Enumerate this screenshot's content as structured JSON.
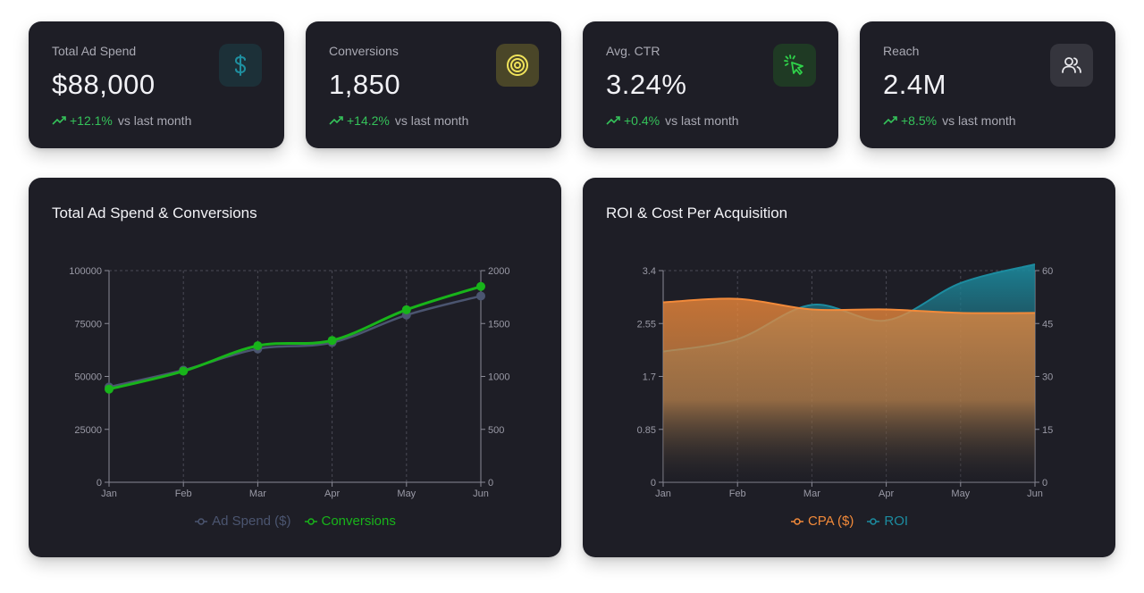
{
  "kpis": [
    {
      "label": "Total Ad Spend",
      "value": "$88,000",
      "change": "+12.1%",
      "comparison": "vs last month",
      "icon": "dollar-icon",
      "icon_color": "#1f8fa0",
      "icon_bg": "#1c3038"
    },
    {
      "label": "Conversions",
      "value": "1,850",
      "change": "+14.2%",
      "comparison": "vs last month",
      "icon": "target-icon",
      "icon_color": "#f0e35a",
      "icon_bg": "#4a4628"
    },
    {
      "label": "Avg. CTR",
      "value": "3.24%",
      "change": "+0.4%",
      "comparison": "vs last month",
      "icon": "cursor-click-icon",
      "icon_color": "#2fd34a",
      "icon_bg": "#1f3a24"
    },
    {
      "label": "Reach",
      "value": "2.4M",
      "change": "+8.5%",
      "comparison": "vs last month",
      "icon": "users-icon",
      "icon_color": "#e6e6ea",
      "icon_bg": "#35353d"
    }
  ],
  "colors": {
    "positive": "#35c25a",
    "ad_spend": "#4b5570",
    "conversions": "#18b41a",
    "cpa": "#f28a3a",
    "roi": "#1c8ca0"
  },
  "charts": {
    "spend_conversions": {
      "title": "Total Ad Spend & Conversions",
      "chart_data": {
        "type": "line",
        "categories": [
          "Jan",
          "Feb",
          "Mar",
          "Apr",
          "May",
          "Jun"
        ],
        "series": [
          {
            "name": "Ad Spend ($)",
            "axis": "left",
            "values": [
              45000,
              53000,
              63000,
              66000,
              79000,
              88000
            ]
          },
          {
            "name": "Conversions",
            "axis": "right",
            "values": [
              880,
              1050,
              1290,
              1340,
              1630,
              1850
            ]
          }
        ],
        "yleft": {
          "min": 0,
          "max": 100000,
          "ticks": [
            "0",
            "25000",
            "50000",
            "75000",
            "100000"
          ]
        },
        "yright": {
          "min": 0,
          "max": 2000,
          "ticks": [
            "0",
            "500",
            "1000",
            "1500",
            "2000"
          ]
        },
        "grid": "vertical-dashed",
        "legend": "bottom-center"
      }
    },
    "roi_cpa": {
      "title": "ROI & Cost Per Acquisition",
      "chart_data": {
        "type": "area",
        "categories": [
          "Jan",
          "Feb",
          "Mar",
          "Apr",
          "May",
          "Jun"
        ],
        "series": [
          {
            "name": "CPA ($)",
            "axis": "right",
            "values": [
              51,
              52,
              49,
              49,
              48,
              48
            ]
          },
          {
            "name": "ROI",
            "axis": "left",
            "values": [
              2.1,
              2.3,
              2.85,
              2.6,
              3.2,
              3.5
            ]
          }
        ],
        "yleft": {
          "min": 0,
          "max": 3.4,
          "ticks": [
            "0",
            "0.85",
            "1.7",
            "2.55",
            "3.4"
          ]
        },
        "yright": {
          "min": 0,
          "max": 60,
          "ticks": [
            "0",
            "15",
            "30",
            "45",
            "60"
          ]
        },
        "grid": "vertical-dashed",
        "legend": "bottom-center"
      }
    }
  }
}
